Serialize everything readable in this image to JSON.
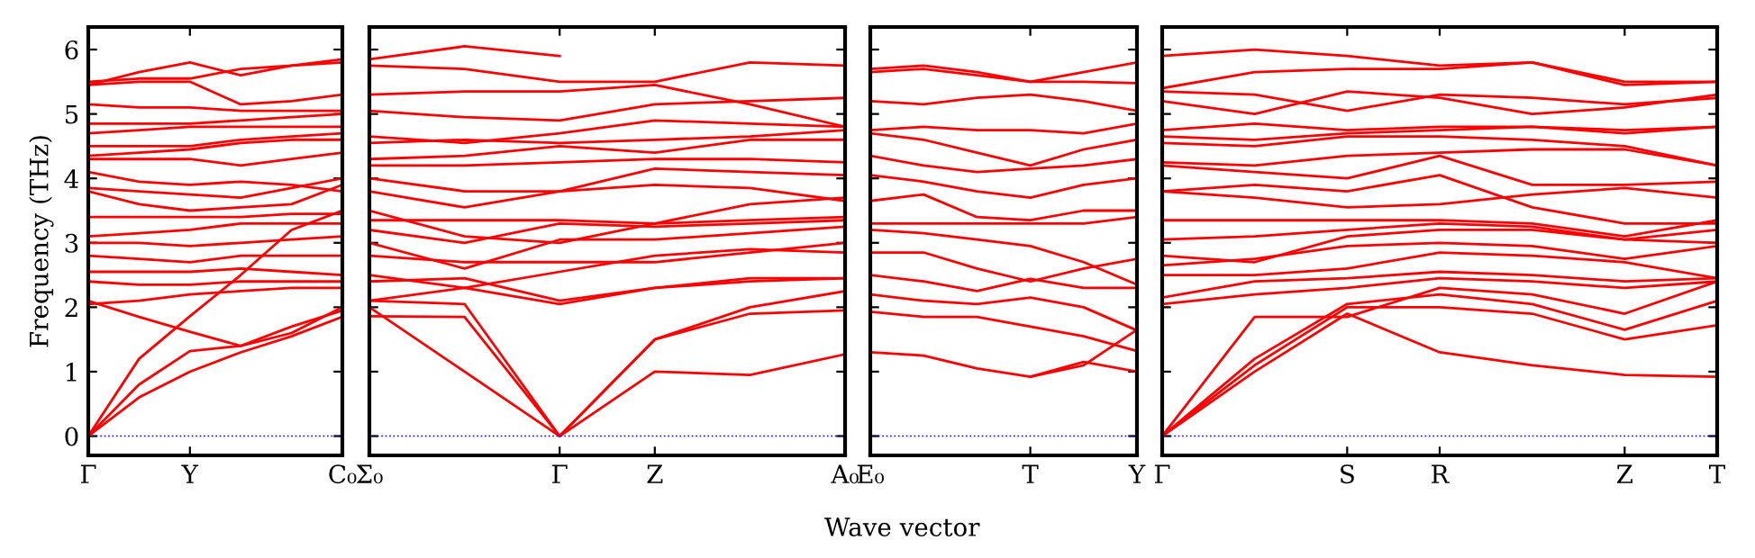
{
  "chart_data": [
    {
      "type": "line",
      "ylabel": "Frequency (THz)",
      "ylim": [
        -0.3,
        6.35
      ],
      "yticks": [
        0,
        1,
        2,
        3,
        4,
        5,
        6
      ],
      "categories": [
        "Γ",
        null,
        "Y",
        null,
        null,
        "C₀"
      ],
      "grid": false,
      "legend": false,
      "ref_lines": [
        {
          "axis": "y",
          "value": 0,
          "color": "#0000ff",
          "line_style": "dotted"
        }
      ],
      "series": [
        {
          "color": "#ff0000",
          "values": [
            0,
            0.6,
            1.0,
            1.3,
            1.55,
            1.85
          ]
        },
        {
          "color": "#ff0000",
          "values": [
            0,
            0.8,
            1.32,
            1.4,
            1.7,
            1.95
          ]
        },
        {
          "color": "#ff0000",
          "values": [
            0,
            1.2,
            1.86,
            2.5,
            3.2,
            3.5
          ]
        },
        {
          "color": "#ff0000",
          "values": [
            2.1,
            1.85,
            1.62,
            1.4,
            1.6,
            2.0
          ]
        },
        {
          "color": "#ff0000",
          "values": [
            2.05,
            2.1,
            2.2,
            2.25,
            2.3,
            2.3
          ]
        },
        {
          "color": "#ff0000",
          "values": [
            2.4,
            2.35,
            2.35,
            2.4,
            2.4,
            2.4
          ]
        },
        {
          "color": "#ff0000",
          "values": [
            2.55,
            2.55,
            2.55,
            2.6,
            2.55,
            2.5
          ]
        },
        {
          "color": "#ff0000",
          "values": [
            2.8,
            2.75,
            2.7,
            2.8,
            2.8,
            2.8
          ]
        },
        {
          "color": "#ff0000",
          "values": [
            3.0,
            3.0,
            2.95,
            3.0,
            3.05,
            3.1
          ]
        },
        {
          "color": "#ff0000",
          "values": [
            3.1,
            3.15,
            3.2,
            3.3,
            3.3,
            3.3
          ]
        },
        {
          "color": "#ff0000",
          "values": [
            3.4,
            3.4,
            3.4,
            3.4,
            3.45,
            3.45
          ]
        },
        {
          "color": "#ff0000",
          "values": [
            3.8,
            3.6,
            3.5,
            3.55,
            3.6,
            3.9
          ]
        },
        {
          "color": "#ff0000",
          "values": [
            3.85,
            3.8,
            3.75,
            3.7,
            3.85,
            4.0
          ]
        },
        {
          "color": "#ff0000",
          "values": [
            4.1,
            3.95,
            3.9,
            3.95,
            3.9,
            3.8
          ]
        },
        {
          "color": "#ff0000",
          "values": [
            4.3,
            4.3,
            4.3,
            4.2,
            4.3,
            4.4
          ]
        },
        {
          "color": "#ff0000",
          "values": [
            4.35,
            4.4,
            4.45,
            4.55,
            4.6,
            4.6
          ]
        },
        {
          "color": "#ff0000",
          "values": [
            4.5,
            4.5,
            4.5,
            4.6,
            4.65,
            4.7
          ]
        },
        {
          "color": "#ff0000",
          "values": [
            4.7,
            4.75,
            4.8,
            4.8,
            4.8,
            4.8
          ]
        },
        {
          "color": "#ff0000",
          "values": [
            4.85,
            4.85,
            4.85,
            4.9,
            4.95,
            5.0
          ]
        },
        {
          "color": "#ff0000",
          "values": [
            5.15,
            5.1,
            5.1,
            5.05,
            5.05,
            5.05
          ]
        },
        {
          "color": "#ff0000",
          "values": [
            5.45,
            5.5,
            5.5,
            5.15,
            5.2,
            5.3
          ]
        },
        {
          "color": "#ff0000",
          "values": [
            5.5,
            5.55,
            5.55,
            5.7,
            5.75,
            5.8
          ]
        },
        {
          "color": "#ff0000",
          "values": [
            5.45,
            5.65,
            5.8,
            5.6,
            5.75,
            5.85
          ]
        }
      ]
    },
    {
      "type": "line",
      "xlabel": "Wave vector",
      "ylim": [
        -0.3,
        6.35
      ],
      "yticks": [
        0,
        1,
        2,
        3,
        4,
        5,
        6
      ],
      "tick_labels": "x",
      "categories": [
        "Σ₀",
        null,
        "Γ",
        "Z",
        null,
        "A₀"
      ],
      "grid": false,
      "legend": false,
      "ref_lines": [
        {
          "axis": "y",
          "value": 0,
          "color": "#0000ff",
          "line_style": "dotted"
        }
      ],
      "series": [
        {
          "color": "#ff0000",
          "values": [
            2.0,
            1.0,
            0,
            1.0,
            0.95,
            1.27
          ]
        },
        {
          "color": "#ff0000",
          "values": [
            1.86,
            1.85,
            0,
            1.5,
            2.0,
            2.25
          ]
        },
        {
          "color": "#ff0000",
          "values": [
            2.1,
            2.05,
            0,
            1.5,
            1.9,
            1.95
          ]
        },
        {
          "color": "#ff0000",
          "values": [
            2.1,
            2.3,
            2.05,
            2.3,
            2.4,
            2.45
          ]
        },
        {
          "color": "#ff0000",
          "values": [
            2.4,
            2.45,
            2.1,
            2.3,
            2.45,
            2.45
          ]
        },
        {
          "color": "#ff0000",
          "values": [
            2.5,
            2.3,
            2.55,
            2.8,
            2.9,
            2.85
          ]
        },
        {
          "color": "#ff0000",
          "values": [
            2.8,
            2.7,
            2.7,
            2.7,
            2.85,
            3.0
          ]
        },
        {
          "color": "#ff0000",
          "values": [
            3.0,
            2.6,
            3.05,
            3.05,
            3.15,
            3.25
          ]
        },
        {
          "color": "#ff0000",
          "values": [
            3.2,
            3.0,
            3.3,
            3.25,
            3.3,
            3.35
          ]
        },
        {
          "color": "#ff0000",
          "values": [
            3.35,
            3.35,
            3.35,
            3.3,
            3.35,
            3.4
          ]
        },
        {
          "color": "#ff0000",
          "values": [
            3.5,
            3.1,
            3.0,
            3.3,
            3.6,
            3.7
          ]
        },
        {
          "color": "#ff0000",
          "values": [
            3.8,
            3.55,
            3.8,
            3.9,
            3.85,
            3.65
          ]
        },
        {
          "color": "#ff0000",
          "values": [
            4.0,
            3.8,
            3.8,
            4.15,
            4.1,
            4.05
          ]
        },
        {
          "color": "#ff0000",
          "values": [
            4.2,
            4.2,
            4.25,
            4.3,
            4.3,
            4.25
          ]
        },
        {
          "color": "#ff0000",
          "values": [
            4.3,
            4.35,
            4.5,
            4.4,
            4.6,
            4.6
          ]
        },
        {
          "color": "#ff0000",
          "values": [
            4.55,
            4.6,
            4.55,
            4.6,
            4.65,
            4.75
          ]
        },
        {
          "color": "#ff0000",
          "values": [
            4.65,
            4.55,
            4.7,
            4.9,
            4.85,
            4.8
          ]
        },
        {
          "color": "#ff0000",
          "values": [
            5.05,
            4.95,
            4.9,
            5.15,
            5.2,
            5.25
          ]
        },
        {
          "color": "#ff0000",
          "values": [
            5.3,
            5.35,
            5.35,
            5.45,
            5.15,
            4.8
          ]
        },
        {
          "color": "#ff0000",
          "values": [
            5.75,
            5.7,
            5.5,
            5.5,
            5.8,
            5.75
          ]
        },
        {
          "color": "#ff0000",
          "values": [
            5.85,
            6.05,
            5.9,
            null,
            null,
            null
          ]
        }
      ]
    },
    {
      "type": "line",
      "ylim": [
        -0.3,
        6.35
      ],
      "yticks": [
        0,
        1,
        2,
        3,
        4,
        5,
        6
      ],
      "tick_labels": "x",
      "categories": [
        "E₀",
        null,
        null,
        "T",
        null,
        "Y"
      ],
      "grid": false,
      "legend": false,
      "ref_lines": [
        {
          "axis": "y",
          "value": 0,
          "color": "#0000ff",
          "line_style": "dotted"
        }
      ],
      "series": [
        {
          "color": "#ff0000",
          "values": [
            1.3,
            1.25,
            1.05,
            0.92,
            1.15,
            1.0
          ]
        },
        {
          "color": "#ff0000",
          "values": [
            null,
            null,
            null,
            0.92,
            1.1,
            1.65
          ]
        },
        {
          "color": "#ff0000",
          "values": [
            1.93,
            1.85,
            1.85,
            1.7,
            1.55,
            1.32
          ]
        },
        {
          "color": "#ff0000",
          "values": [
            2.2,
            2.1,
            2.05,
            2.15,
            2.0,
            1.64
          ]
        },
        {
          "color": "#ff0000",
          "values": [
            2.5,
            2.4,
            2.25,
            2.44,
            2.3,
            2.3
          ]
        },
        {
          "color": "#ff0000",
          "values": [
            2.85,
            2.85,
            2.6,
            2.4,
            2.6,
            2.75
          ]
        },
        {
          "color": "#ff0000",
          "values": [
            3.2,
            3.15,
            3.05,
            2.95,
            2.7,
            2.35
          ]
        },
        {
          "color": "#ff0000",
          "values": [
            3.3,
            3.3,
            3.3,
            3.3,
            3.3,
            3.4
          ]
        },
        {
          "color": "#ff0000",
          "values": [
            3.65,
            3.75,
            3.4,
            3.35,
            3.5,
            3.5
          ]
        },
        {
          "color": "#ff0000",
          "values": [
            4.05,
            3.95,
            3.8,
            3.7,
            3.9,
            4.0
          ]
        },
        {
          "color": "#ff0000",
          "values": [
            4.35,
            4.2,
            4.1,
            4.15,
            4.2,
            4.3
          ]
        },
        {
          "color": "#ff0000",
          "values": [
            4.7,
            4.6,
            4.4,
            4.2,
            4.45,
            4.6
          ]
        },
        {
          "color": "#ff0000",
          "values": [
            4.75,
            4.8,
            4.75,
            4.75,
            4.7,
            4.85
          ]
        },
        {
          "color": "#ff0000",
          "values": [
            5.2,
            5.15,
            5.25,
            5.3,
            5.2,
            5.05
          ]
        },
        {
          "color": "#ff0000",
          "values": [
            5.7,
            5.75,
            5.65,
            5.5,
            5.5,
            5.48
          ]
        },
        {
          "color": "#ff0000",
          "values": [
            5.65,
            5.7,
            5.6,
            5.5,
            5.65,
            5.8
          ]
        }
      ]
    },
    {
      "type": "line",
      "ylim": [
        -0.3,
        6.35
      ],
      "yticks": [
        0,
        1,
        2,
        3,
        4,
        5,
        6
      ],
      "tick_labels": "x",
      "categories": [
        "Γ",
        null,
        "S",
        "R",
        null,
        "Z",
        "T"
      ],
      "grid": false,
      "legend": false,
      "ref_lines": [
        {
          "axis": "y",
          "value": 0,
          "color": "#0000ff",
          "line_style": "dotted"
        }
      ],
      "series": [
        {
          "color": "#ff0000",
          "values": [
            0,
            1.0,
            1.9,
            1.3,
            1.1,
            0.95,
            0.92
          ]
        },
        {
          "color": "#ff0000",
          "values": [
            0,
            1.1,
            2.0,
            2.0,
            1.9,
            1.5,
            1.72
          ]
        },
        {
          "color": "#ff0000",
          "values": [
            0,
            1.2,
            2.05,
            2.2,
            2.05,
            1.65,
            2.1
          ]
        },
        {
          "color": "#ff0000",
          "values": [
            0,
            1.85,
            1.85,
            2.3,
            2.2,
            1.9,
            2.4
          ]
        },
        {
          "color": "#ff0000",
          "values": [
            2.05,
            2.2,
            2.3,
            2.45,
            2.4,
            2.3,
            2.4
          ]
        },
        {
          "color": "#ff0000",
          "values": [
            2.15,
            2.4,
            2.45,
            2.55,
            2.5,
            2.4,
            2.45
          ]
        },
        {
          "color": "#ff0000",
          "values": [
            2.5,
            2.5,
            2.6,
            2.85,
            2.8,
            2.7,
            2.45
          ]
        },
        {
          "color": "#ff0000",
          "values": [
            2.65,
            2.75,
            2.95,
            3.0,
            2.95,
            2.75,
            2.95
          ]
        },
        {
          "color": "#ff0000",
          "values": [
            2.8,
            2.7,
            3.1,
            3.2,
            3.2,
            3.05,
            3.0
          ]
        },
        {
          "color": "#ff0000",
          "values": [
            3.05,
            3.1,
            3.2,
            3.3,
            3.25,
            3.05,
            3.2
          ]
        },
        {
          "color": "#ff0000",
          "values": [
            3.35,
            3.35,
            3.35,
            3.35,
            3.3,
            3.1,
            3.35
          ]
        },
        {
          "color": "#ff0000",
          "values": [
            3.8,
            3.7,
            3.55,
            3.6,
            3.75,
            3.85,
            3.7
          ]
        },
        {
          "color": "#ff0000",
          "values": [
            3.8,
            3.9,
            3.8,
            4.05,
            3.55,
            3.3,
            3.3
          ]
        },
        {
          "color": "#ff0000",
          "values": [
            4.2,
            4.1,
            4.0,
            4.35,
            3.9,
            3.9,
            3.95
          ]
        },
        {
          "color": "#ff0000",
          "values": [
            4.25,
            4.2,
            4.35,
            4.4,
            4.45,
            4.45,
            4.2
          ]
        },
        {
          "color": "#ff0000",
          "values": [
            4.55,
            4.5,
            4.65,
            4.65,
            4.6,
            4.5,
            4.2
          ]
        },
        {
          "color": "#ff0000",
          "values": [
            4.65,
            4.6,
            4.7,
            4.75,
            4.8,
            4.7,
            4.8
          ]
        },
        {
          "color": "#ff0000",
          "values": [
            4.75,
            4.85,
            4.75,
            4.8,
            4.8,
            4.75,
            4.8
          ]
        },
        {
          "color": "#ff0000",
          "values": [
            5.2,
            5.0,
            5.35,
            5.25,
            5.0,
            5.1,
            5.3
          ]
        },
        {
          "color": "#ff0000",
          "values": [
            5.35,
            5.3,
            5.05,
            5.3,
            5.25,
            5.15,
            5.25
          ]
        },
        {
          "color": "#ff0000",
          "values": [
            5.4,
            5.65,
            5.7,
            5.7,
            5.8,
            5.5,
            5.5
          ]
        },
        {
          "color": "#ff0000",
          "values": [
            5.9,
            6.0,
            5.9,
            5.75,
            5.8,
            5.45,
            5.5
          ]
        }
      ]
    }
  ]
}
